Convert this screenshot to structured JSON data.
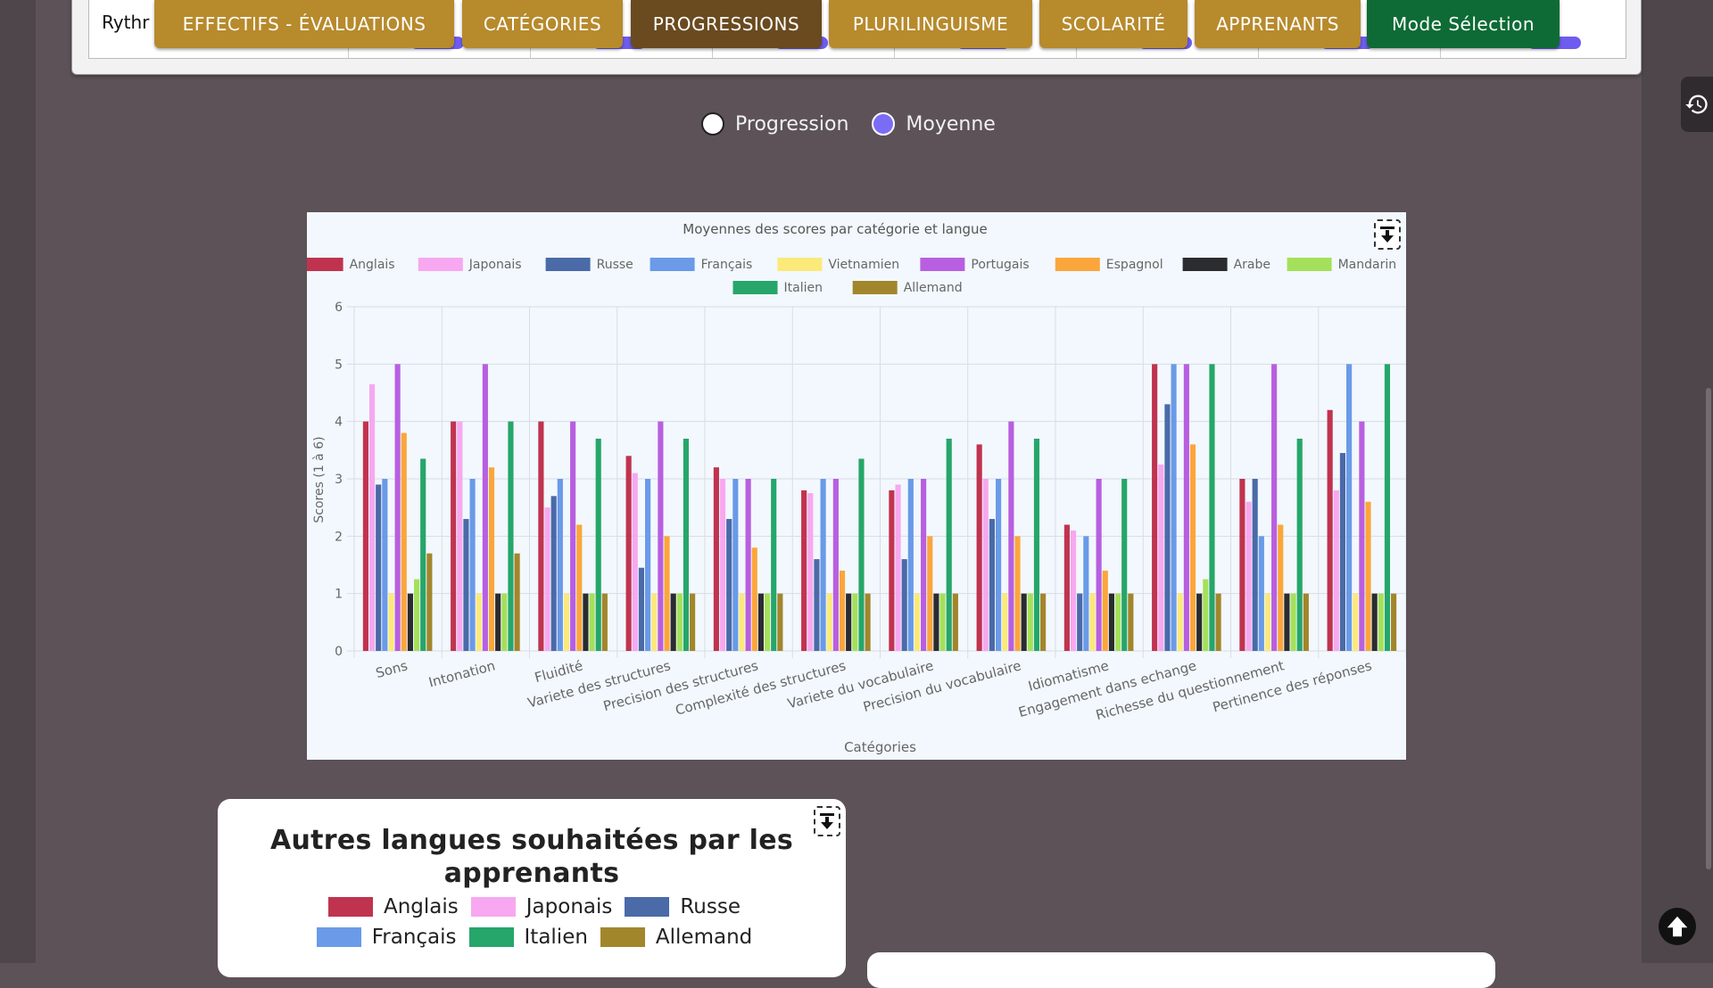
{
  "top_table": {
    "row_label": "Rythr"
  },
  "nav": {
    "effectifs": "EFFECTIFS - ÉVALUATIONS",
    "categories": "CATÉGORIES",
    "progressions": "PROGRESSIONS",
    "plurilinguisme": "PLURILINGUISME",
    "scolarite": "SCOLARITÉ",
    "apprenants": "APPRENANTS",
    "mode_selection": "Mode Sélection"
  },
  "toggle": {
    "progression_label": "Progression",
    "moyenne_label": "Moyenne",
    "selected": "Moyenne"
  },
  "chart_data": {
    "type": "bar",
    "title": "Moyennes des scores par catégorie et langue",
    "xlabel": "Catégories",
    "ylabel": "Scores (1 à 6)",
    "ylim": [
      0,
      6
    ],
    "yticks": [
      "0",
      "1",
      "2",
      "3",
      "4",
      "5",
      "6"
    ],
    "grid": true,
    "legend_position": "top",
    "categories": [
      "Sons",
      "Intonation",
      "Fluidité",
      "Variete des structures",
      "Precision des structures",
      "Complexité des structures",
      "Variete du vocabulaire",
      "Precision du vocabulaire",
      "Idiomatisme",
      "Engagement dans echange",
      "Richesse du questionnement",
      "Pertinence des réponses"
    ],
    "series": [
      {
        "name": "Anglais",
        "color": "#c0334f",
        "values": [
          4,
          4,
          4,
          3.4,
          3.2,
          2.8,
          2.8,
          3.6,
          2.2,
          5,
          3,
          4.2
        ]
      },
      {
        "name": "Japonais",
        "color": "#f7a8f0",
        "values": [
          4.65,
          4,
          2.5,
          3.1,
          3,
          2.75,
          2.9,
          3,
          2.1,
          3.25,
          2.6,
          2.8
        ]
      },
      {
        "name": "Russe",
        "color": "#4a6aa8",
        "values": [
          2.9,
          2.3,
          2.7,
          1.45,
          2.3,
          1.6,
          1.6,
          2.3,
          1,
          4.3,
          3,
          3.45
        ]
      },
      {
        "name": "Français",
        "color": "#6a9ae8",
        "values": [
          3,
          3,
          3,
          3,
          3,
          3,
          3,
          3,
          2,
          5,
          2,
          5
        ]
      },
      {
        "name": "Vietnamien",
        "color": "#fbe97a",
        "values": [
          1,
          1,
          1,
          1,
          1,
          1,
          1,
          1,
          1,
          1,
          1,
          1
        ]
      },
      {
        "name": "Portugais",
        "color": "#b85fe0",
        "values": [
          5,
          5,
          4,
          4,
          3,
          3,
          3,
          4,
          3,
          5,
          5,
          4
        ]
      },
      {
        "name": "Espagnol",
        "color": "#fba63c",
        "values": [
          3.8,
          3.2,
          2.2,
          2,
          1.8,
          1.4,
          2,
          2,
          1.4,
          3.6,
          2.2,
          2.6
        ]
      },
      {
        "name": "Arabe",
        "color": "#2a2c30",
        "values": [
          1,
          1,
          1,
          1,
          1,
          1,
          1,
          1,
          1,
          1,
          1,
          1
        ]
      },
      {
        "name": "Mandarin",
        "color": "#a5e05a",
        "values": [
          1.25,
          1,
          1,
          1,
          1,
          1,
          1,
          1,
          1,
          1.25,
          1,
          1
        ]
      },
      {
        "name": "Italien",
        "color": "#26a66a",
        "values": [
          3.35,
          4,
          3.7,
          3.7,
          3,
          3.35,
          3.7,
          3.7,
          3,
          5,
          3.7,
          5
        ]
      },
      {
        "name": "Allemand",
        "color": "#a2862c",
        "values": [
          1.7,
          1.7,
          1,
          1,
          1,
          1,
          1,
          1,
          1,
          1,
          1,
          1
        ]
      }
    ]
  },
  "pie_card": {
    "title": "Autres langues souhaitées par les apprenants",
    "legend": [
      {
        "label": "Anglais",
        "color": "#c0334f"
      },
      {
        "label": "Japonais",
        "color": "#f7a8f0"
      },
      {
        "label": "Russe",
        "color": "#4a6aa8"
      },
      {
        "label": "Français",
        "color": "#6a9ae8"
      },
      {
        "label": "Italien",
        "color": "#26a66a"
      },
      {
        "label": "Allemand",
        "color": "#a2862c"
      }
    ]
  },
  "icons": {
    "download": "download-icon",
    "history": "history-icon",
    "scroll_top": "arrow-up-icon"
  }
}
